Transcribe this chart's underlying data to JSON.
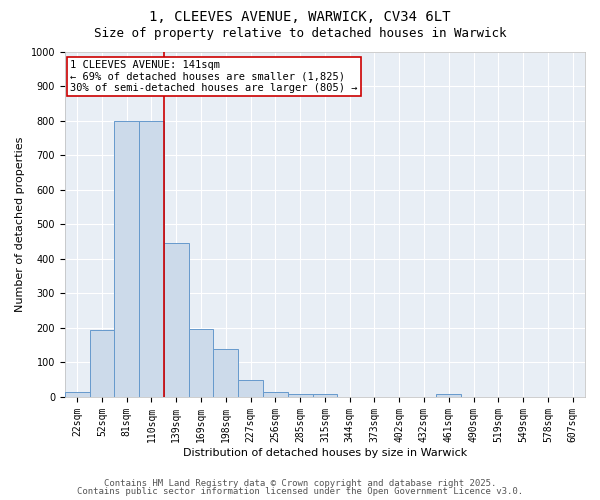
{
  "title_line1": "1, CLEEVES AVENUE, WARWICK, CV34 6LT",
  "title_line2": "Size of property relative to detached houses in Warwick",
  "xlabel": "Distribution of detached houses by size in Warwick",
  "ylabel": "Number of detached properties",
  "categories": [
    "22sqm",
    "52sqm",
    "81sqm",
    "110sqm",
    "139sqm",
    "169sqm",
    "198sqm",
    "227sqm",
    "256sqm",
    "285sqm",
    "315sqm",
    "344sqm",
    "373sqm",
    "402sqm",
    "432sqm",
    "461sqm",
    "490sqm",
    "519sqm",
    "549sqm",
    "578sqm",
    "607sqm"
  ],
  "values": [
    15,
    195,
    800,
    800,
    445,
    198,
    140,
    48,
    15,
    10,
    10,
    0,
    0,
    0,
    0,
    10,
    0,
    0,
    0,
    0,
    0
  ],
  "bar_color": "#ccdaea",
  "bar_edge_color": "#6699cc",
  "vline_x_index": 3.5,
  "vline_color": "#cc0000",
  "ylim": [
    0,
    1000
  ],
  "yticks": [
    0,
    100,
    200,
    300,
    400,
    500,
    600,
    700,
    800,
    900,
    1000
  ],
  "annotation_text": "1 CLEEVES AVENUE: 141sqm\n← 69% of detached houses are smaller (1,825)\n30% of semi-detached houses are larger (805) →",
  "annotation_box_color": "#ffffff",
  "annotation_box_edge_color": "#cc0000",
  "footer_line1": "Contains HM Land Registry data © Crown copyright and database right 2025.",
  "footer_line2": "Contains public sector information licensed under the Open Government Licence v3.0.",
  "fig_background_color": "#ffffff",
  "axes_background_color": "#e8eef5",
  "grid_color": "#ffffff",
  "title_fontsize": 10,
  "subtitle_fontsize": 9,
  "axis_label_fontsize": 8,
  "tick_fontsize": 7,
  "annotation_fontsize": 7.5,
  "footer_fontsize": 6.5
}
